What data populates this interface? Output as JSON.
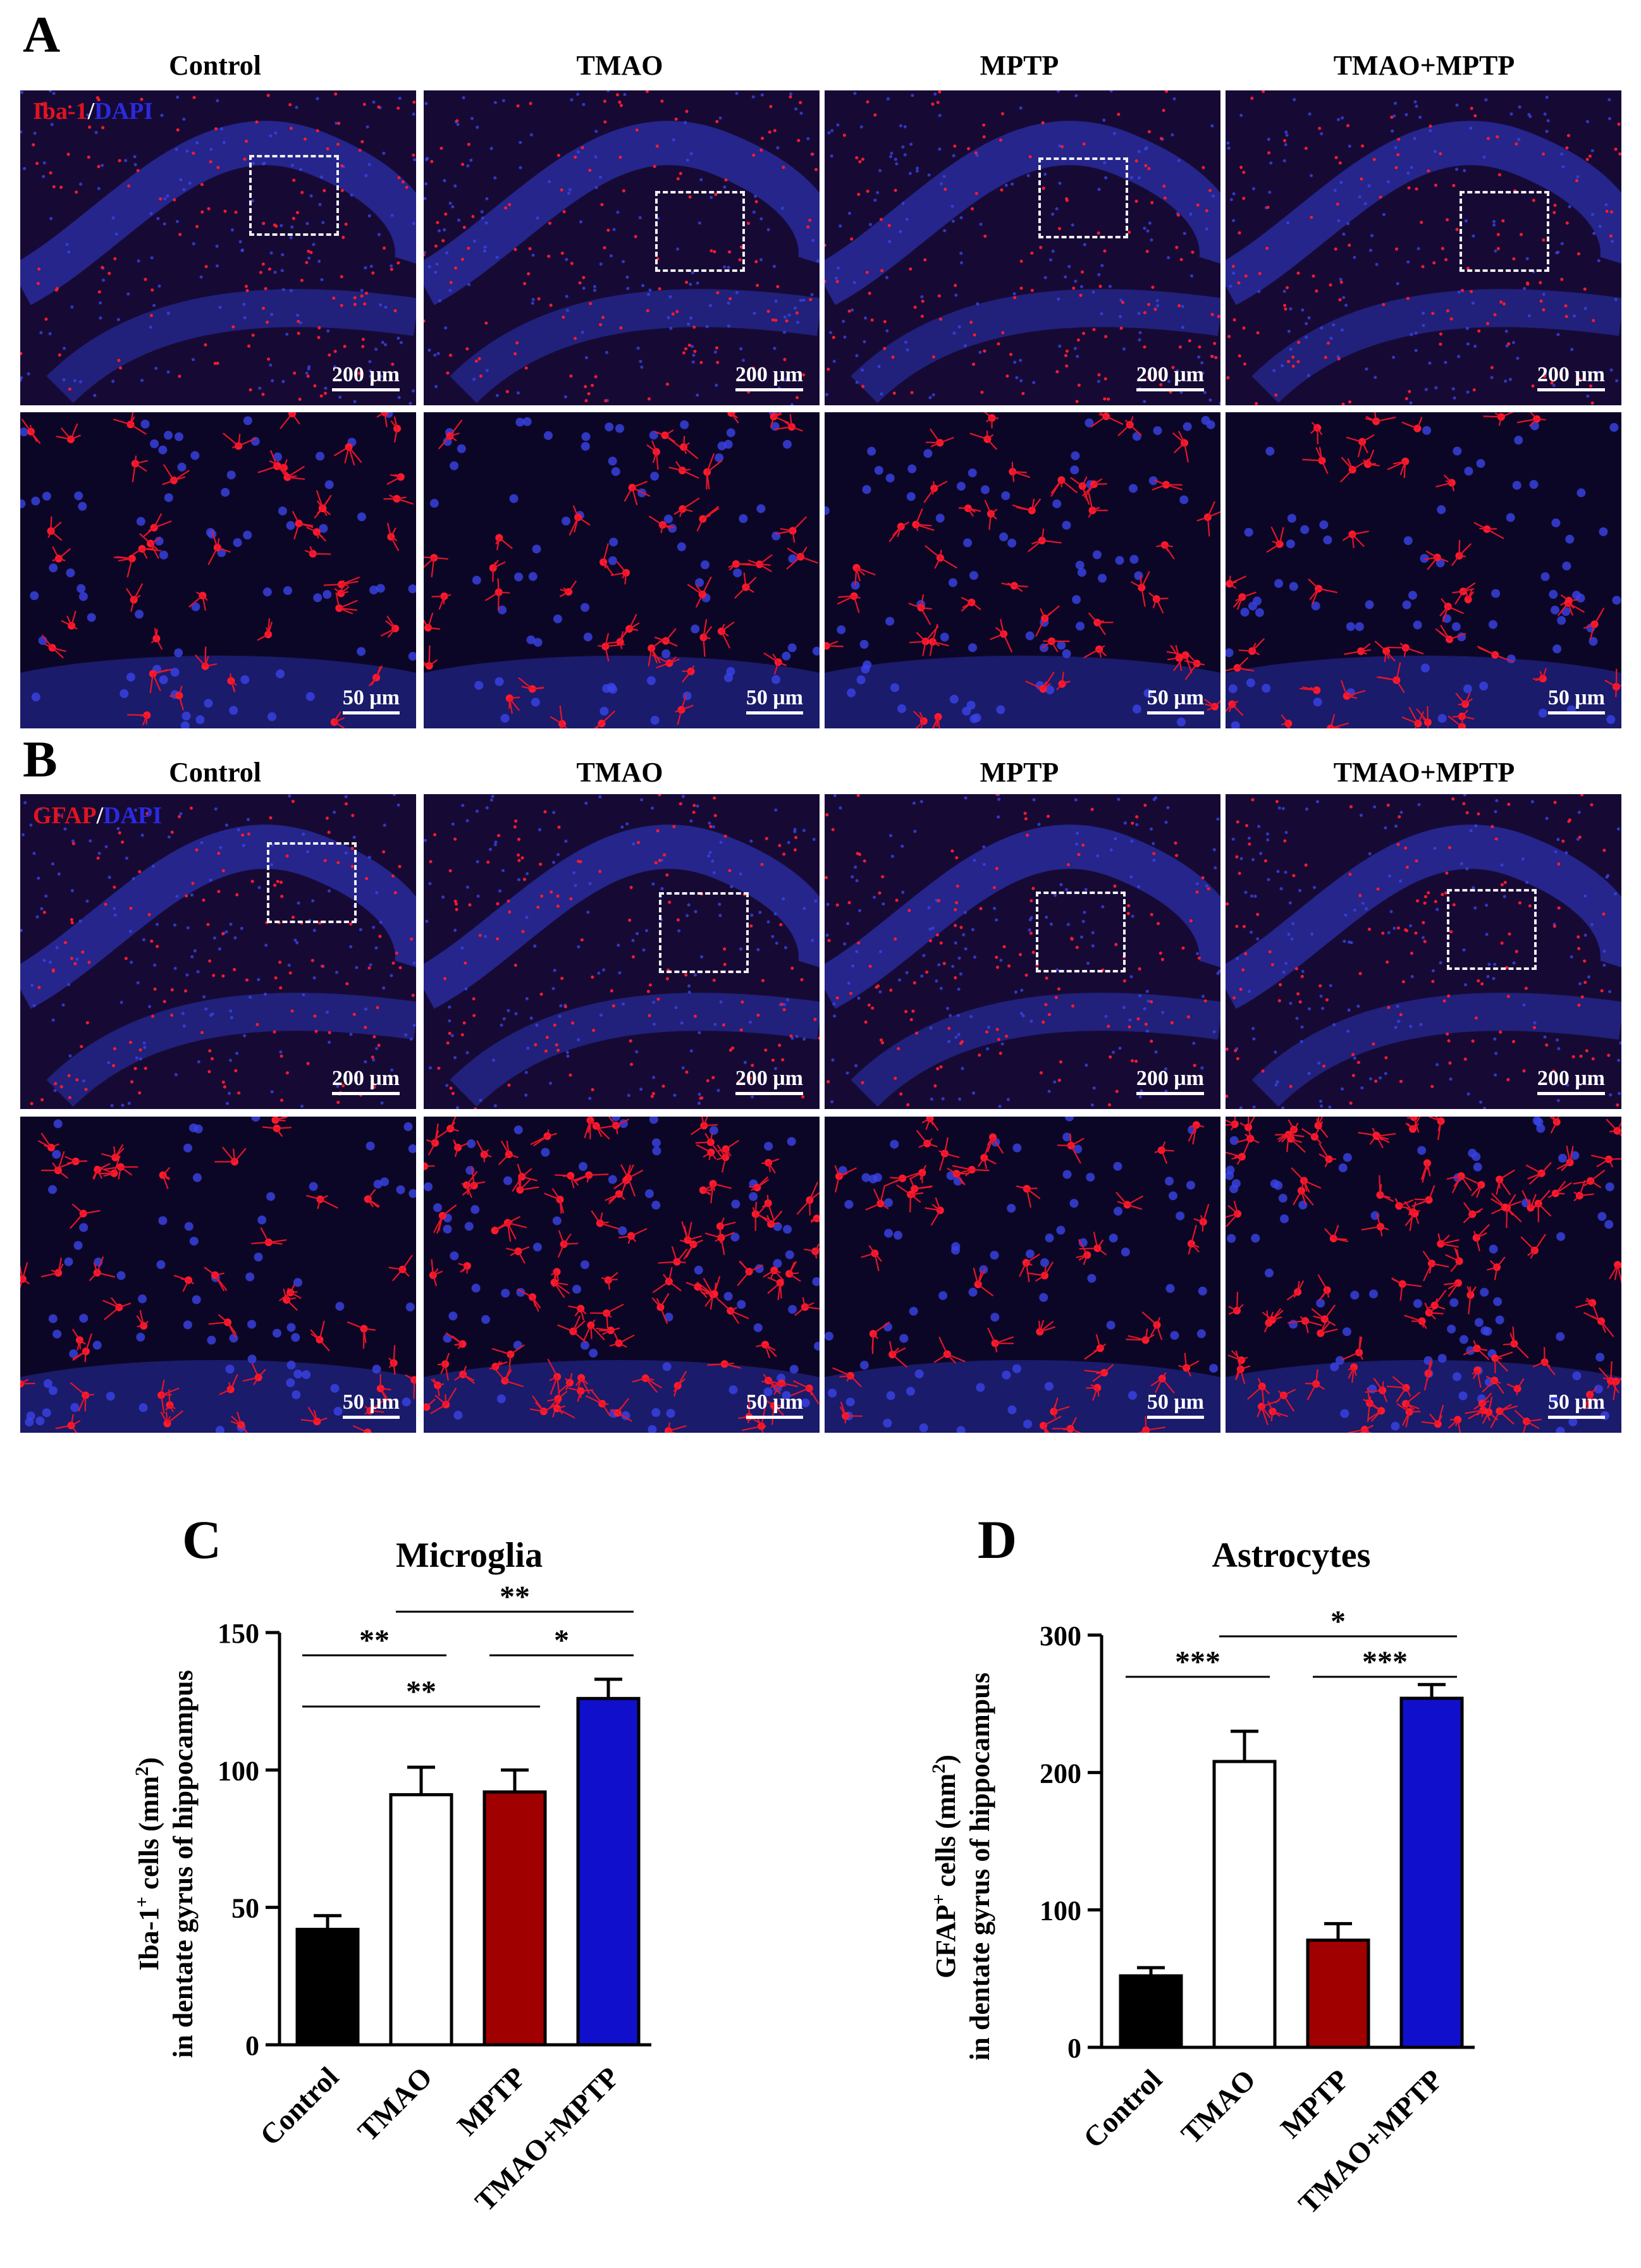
{
  "panels": {
    "A": {
      "letter": "A",
      "stain_red": "Iba-1",
      "stain_slash": "/",
      "stain_blue": "DAPI"
    },
    "B": {
      "letter": "B",
      "stain_red": "GFAP",
      "stain_slash": "/",
      "stain_blue": "DAPI"
    },
    "C": {
      "letter": "C"
    },
    "D": {
      "letter": "D"
    }
  },
  "groups": [
    "Control",
    "TMAO",
    "MPTP",
    "TMAO+MPTP"
  ],
  "scale": {
    "low_mag": "200 μm",
    "high_mag": "50 μm"
  },
  "colors": {
    "Control": "#000000",
    "TMAO": "#ffffff",
    "MPTP": "#a00000",
    "TMAO+MPTP": "#1010cc"
  },
  "chart_data": [
    {
      "type": "bar",
      "panel": "C",
      "title": "Microglia",
      "ylabel_line1": "Iba-1+ cells (mm2)",
      "ylabel_line2": "in dentate gyrus of hippocampus",
      "categories": [
        "Control",
        "TMAO",
        "MPTP",
        "TMAO+MPTP"
      ],
      "values": [
        42,
        91,
        92,
        126
      ],
      "errors": [
        5,
        10,
        8,
        7
      ],
      "ylim": [
        0,
        150
      ],
      "yticks": [
        "0",
        "50",
        "100",
        "150"
      ],
      "significance": [
        {
          "from": "Control",
          "to": "TMAO",
          "label": "**"
        },
        {
          "from": "Control",
          "to": "MPTP",
          "label": "**"
        },
        {
          "from": "TMAO",
          "to": "TMAO+MPTP",
          "label": "**"
        },
        {
          "from": "MPTP",
          "to": "TMAO+MPTP",
          "label": "*"
        }
      ]
    },
    {
      "type": "bar",
      "panel": "D",
      "title": "Astrocytes",
      "ylabel_line1": "GFAP+ cells (mm2)",
      "ylabel_line2": "in dentate gyrus of hippocampus",
      "categories": [
        "Control",
        "TMAO",
        "MPTP",
        "TMAO+MPTP"
      ],
      "values": [
        52,
        208,
        78,
        254
      ],
      "errors": [
        6,
        22,
        12,
        10
      ],
      "ylim": [
        0,
        300
      ],
      "yticks": [
        "0",
        "100",
        "200",
        "300"
      ],
      "significance": [
        {
          "from": "Control",
          "to": "TMAO",
          "label": "***"
        },
        {
          "from": "TMAO",
          "to": "TMAO+MPTP",
          "label": "*"
        },
        {
          "from": "MPTP",
          "to": "TMAO+MPTP",
          "label": "***"
        }
      ]
    }
  ]
}
